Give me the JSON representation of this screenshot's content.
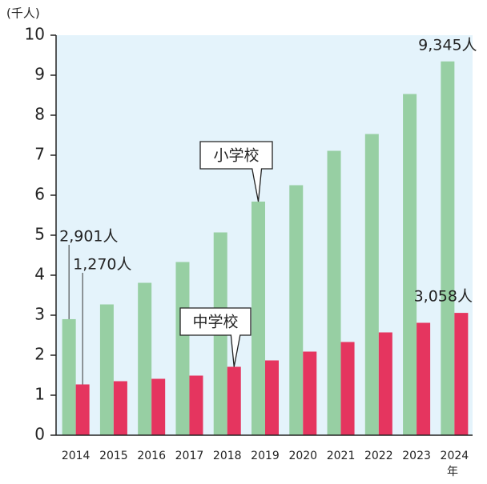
{
  "chart_data": {
    "type": "bar",
    "y_axis_label": "(千人)",
    "x_axis_label": "年",
    "categories": [
      "2014",
      "2015",
      "2016",
      "2017",
      "2018",
      "2019",
      "2020",
      "2021",
      "2022",
      "2023",
      "2024"
    ],
    "series": [
      {
        "name": "小学校",
        "color": "#97cfa3",
        "values": [
          2.901,
          3.27,
          3.81,
          4.33,
          5.07,
          5.84,
          6.25,
          7.11,
          7.53,
          8.53,
          9.345
        ],
        "value_labels": [
          "2,901人",
          null,
          null,
          null,
          null,
          null,
          null,
          null,
          null,
          null,
          "9,345人"
        ]
      },
      {
        "name": "中学校",
        "color": "#e5355f",
        "values": [
          1.27,
          1.35,
          1.41,
          1.49,
          1.71,
          1.87,
          2.09,
          2.33,
          2.57,
          2.81,
          3.058
        ],
        "value_labels": [
          "1,270人",
          null,
          null,
          null,
          null,
          null,
          null,
          null,
          null,
          null,
          "3,058人"
        ]
      }
    ],
    "ylim": [
      0,
      10
    ],
    "yticks": [
      0,
      1,
      2,
      3,
      4,
      5,
      6,
      7,
      8,
      9,
      10
    ],
    "grid": false
  }
}
